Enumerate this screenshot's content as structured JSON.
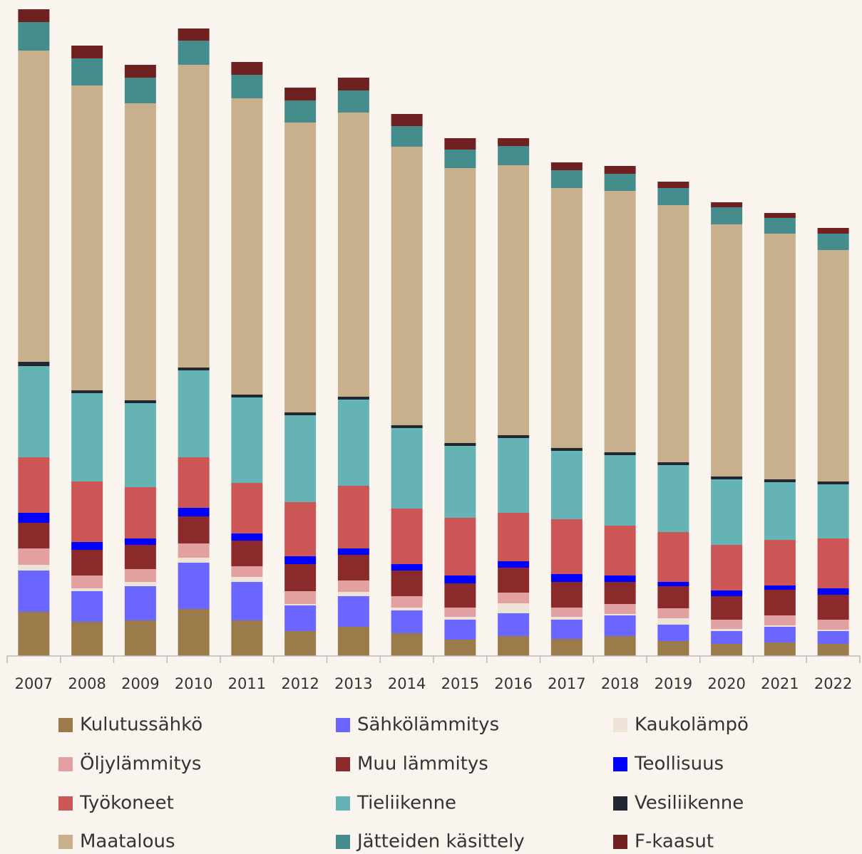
{
  "chart_data": {
    "type": "stacked_bar",
    "categories": [
      "2007",
      "2008",
      "2009",
      "2010",
      "2011",
      "2012",
      "2013",
      "2014",
      "2015",
      "2016",
      "2017",
      "2018",
      "2019",
      "2020",
      "2021",
      "2022"
    ],
    "series": [
      {
        "name": "Kulutussähkö",
        "color": "#9b7b4a",
        "values": [
          62,
          48,
          50,
          66,
          50,
          35,
          41,
          32,
          23,
          28,
          24,
          28,
          21,
          17,
          19,
          17
        ]
      },
      {
        "name": "Sähkölämmitys",
        "color": "#6b66ff",
        "values": [
          58,
          43,
          48,
          65,
          54,
          36,
          43,
          32,
          28,
          32,
          27,
          29,
          23,
          18,
          22,
          18
        ]
      },
      {
        "name": "Kaukolämpö",
        "color": "#ede3d6",
        "values": [
          8,
          4,
          6,
          7,
          7,
          2,
          6,
          4,
          4,
          14,
          4,
          2,
          9,
          3,
          2,
          2
        ]
      },
      {
        "name": "Öljylämmitys",
        "color": "#e3a0a0",
        "values": [
          23,
          18,
          18,
          20,
          15,
          18,
          16,
          16,
          13,
          15,
          13,
          14,
          14,
          13,
          14,
          14
        ]
      },
      {
        "name": "Muu lämmitys",
        "color": "#8b2a2a",
        "values": [
          36,
          36,
          34,
          38,
          36,
          38,
          36,
          36,
          34,
          35,
          36,
          31,
          31,
          33,
          36,
          35
        ]
      },
      {
        "name": "Teollisuus",
        "color": "#0000ff",
        "values": [
          14,
          11,
          9,
          12,
          10,
          11,
          9,
          9,
          11,
          9,
          11,
          9,
          6,
          8,
          6,
          9
        ]
      },
      {
        "name": "Työkoneet",
        "color": "#cc5555",
        "values": [
          78,
          85,
          72,
          71,
          71,
          76,
          88,
          78,
          81,
          68,
          77,
          70,
          70,
          64,
          64,
          70
        ]
      },
      {
        "name": "Tieliikenne",
        "color": "#66b3b5",
        "values": [
          128,
          124,
          118,
          122,
          120,
          122,
          121,
          113,
          101,
          105,
          96,
          99,
          94,
          92,
          81,
          76
        ]
      },
      {
        "name": "Vesiliikenne",
        "color": "#222831",
        "values": [
          6,
          4,
          4,
          4,
          4,
          4,
          4,
          4,
          4,
          4,
          4,
          4,
          4,
          4,
          4,
          4
        ]
      },
      {
        "name": "Maatalous",
        "color": "#c8b08c",
        "values": [
          437,
          428,
          417,
          425,
          416,
          407,
          399,
          391,
          386,
          379,
          365,
          367,
          361,
          354,
          345,
          325
        ]
      },
      {
        "name": "Jätteiden käsittely",
        "color": "#458c8c",
        "values": [
          40,
          38,
          36,
          34,
          33,
          31,
          31,
          29,
          26,
          27,
          25,
          24,
          24,
          24,
          22,
          23
        ]
      },
      {
        "name": "F-kaasut",
        "color": "#6f2020",
        "values": [
          18,
          18,
          18,
          17,
          18,
          18,
          18,
          17,
          16,
          11,
          11,
          11,
          9,
          7,
          7,
          8
        ]
      }
    ]
  }
}
